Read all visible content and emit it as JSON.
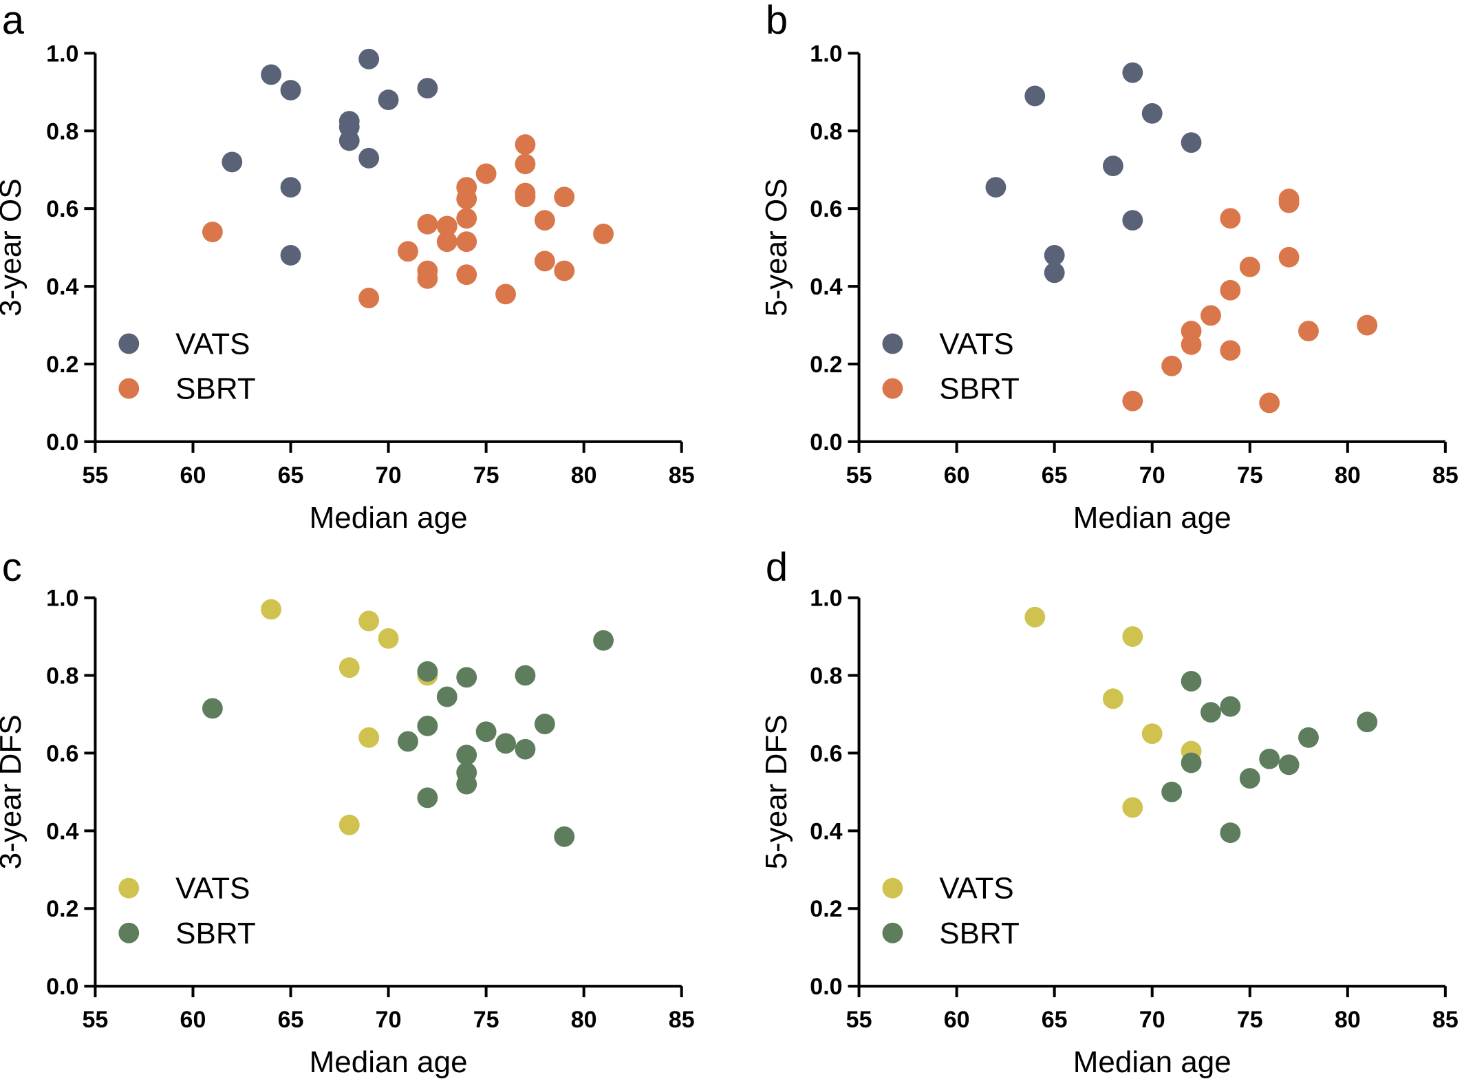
{
  "chart_data": [
    {
      "panel": "a",
      "type": "scatter",
      "xlabel": "Median age",
      "ylabel": "3-year OS",
      "xlim": [
        55,
        85
      ],
      "ylim": [
        0.0,
        1.0
      ],
      "xticks": [
        "55",
        "60",
        "65",
        "70",
        "75",
        "80",
        "85"
      ],
      "yticks": [
        "0.0",
        "0.2",
        "0.4",
        "0.6",
        "0.8",
        "1.0"
      ],
      "legend_position": "bottom-left",
      "series": [
        {
          "name": "VATS",
          "color": "#5a6278",
          "points": [
            [
              62,
              0.72
            ],
            [
              64,
              0.945
            ],
            [
              65,
              0.905
            ],
            [
              65,
              0.655
            ],
            [
              65,
              0.48
            ],
            [
              68,
              0.825
            ],
            [
              68,
              0.81
            ],
            [
              68,
              0.775
            ],
            [
              69,
              0.985
            ],
            [
              69,
              0.73
            ],
            [
              70,
              0.88
            ],
            [
              72,
              0.91
            ]
          ]
        },
        {
          "name": "SBRT",
          "color": "#d9764a",
          "points": [
            [
              61,
              0.54
            ],
            [
              69,
              0.37
            ],
            [
              71,
              0.49
            ],
            [
              72,
              0.56
            ],
            [
              72,
              0.44
            ],
            [
              72,
              0.42
            ],
            [
              73,
              0.555
            ],
            [
              73,
              0.515
            ],
            [
              74,
              0.655
            ],
            [
              74,
              0.625
            ],
            [
              74,
              0.575
            ],
            [
              74,
              0.515
            ],
            [
              74,
              0.43
            ],
            [
              75,
              0.69
            ],
            [
              76,
              0.38
            ],
            [
              77,
              0.765
            ],
            [
              77,
              0.715
            ],
            [
              77,
              0.64
            ],
            [
              77,
              0.63
            ],
            [
              78,
              0.57
            ],
            [
              78,
              0.465
            ],
            [
              79,
              0.63
            ],
            [
              79,
              0.44
            ],
            [
              81,
              0.535
            ]
          ]
        }
      ]
    },
    {
      "panel": "b",
      "type": "scatter",
      "xlabel": "Median age",
      "ylabel": "5-year OS",
      "xlim": [
        55,
        85
      ],
      "ylim": [
        0.0,
        1.0
      ],
      "xticks": [
        "55",
        "60",
        "65",
        "70",
        "75",
        "80",
        "85"
      ],
      "yticks": [
        "0.0",
        "0.2",
        "0.4",
        "0.6",
        "0.8",
        "1.0"
      ],
      "legend_position": "bottom-left",
      "series": [
        {
          "name": "VATS",
          "color": "#5a6278",
          "points": [
            [
              62,
              0.655
            ],
            [
              64,
              0.89
            ],
            [
              65,
              0.48
            ],
            [
              65,
              0.435
            ],
            [
              68,
              0.71
            ],
            [
              69,
              0.95
            ],
            [
              69,
              0.57
            ],
            [
              70,
              0.845
            ],
            [
              72,
              0.77
            ]
          ]
        },
        {
          "name": "SBRT",
          "color": "#d9764a",
          "points": [
            [
              69,
              0.105
            ],
            [
              71,
              0.195
            ],
            [
              72,
              0.285
            ],
            [
              72,
              0.25
            ],
            [
              73,
              0.325
            ],
            [
              74,
              0.575
            ],
            [
              74,
              0.39
            ],
            [
              74,
              0.235
            ],
            [
              75,
              0.45
            ],
            [
              76,
              0.1
            ],
            [
              77,
              0.625
            ],
            [
              77,
              0.615
            ],
            [
              77,
              0.475
            ],
            [
              78,
              0.285
            ],
            [
              81,
              0.3
            ]
          ]
        }
      ]
    },
    {
      "panel": "c",
      "type": "scatter",
      "xlabel": "Median age",
      "ylabel": "3-year DFS",
      "xlim": [
        55,
        85
      ],
      "ylim": [
        0.0,
        1.0
      ],
      "xticks": [
        "55",
        "60",
        "65",
        "70",
        "75",
        "80",
        "85"
      ],
      "yticks": [
        "0.0",
        "0.2",
        "0.4",
        "0.6",
        "0.8",
        "1.0"
      ],
      "legend_position": "bottom-left",
      "series": [
        {
          "name": "VATS",
          "color": "#cfc24f",
          "points": [
            [
              64,
              0.97
            ],
            [
              68,
              0.82
            ],
            [
              68,
              0.415
            ],
            [
              69,
              0.94
            ],
            [
              69,
              0.64
            ],
            [
              70,
              0.895
            ],
            [
              72,
              0.8
            ]
          ]
        },
        {
          "name": "SBRT",
          "color": "#5d7d5c",
          "points": [
            [
              61,
              0.715
            ],
            [
              71,
              0.63
            ],
            [
              72,
              0.81
            ],
            [
              72,
              0.67
            ],
            [
              72,
              0.485
            ],
            [
              73,
              0.745
            ],
            [
              74,
              0.795
            ],
            [
              74,
              0.595
            ],
            [
              74,
              0.55
            ],
            [
              74,
              0.52
            ],
            [
              75,
              0.655
            ],
            [
              76,
              0.625
            ],
            [
              77,
              0.8
            ],
            [
              77,
              0.61
            ],
            [
              78,
              0.675
            ],
            [
              79,
              0.385
            ],
            [
              81,
              0.89
            ]
          ]
        }
      ]
    },
    {
      "panel": "d",
      "type": "scatter",
      "xlabel": "Median age",
      "ylabel": "5-year DFS",
      "xlim": [
        55,
        85
      ],
      "ylim": [
        0.0,
        1.0
      ],
      "xticks": [
        "55",
        "60",
        "65",
        "70",
        "75",
        "80",
        "85"
      ],
      "yticks": [
        "0.0",
        "0.2",
        "0.4",
        "0.6",
        "0.8",
        "1.0"
      ],
      "legend_position": "bottom-left",
      "series": [
        {
          "name": "VATS",
          "color": "#cfc24f",
          "points": [
            [
              64,
              0.95
            ],
            [
              68,
              0.74
            ],
            [
              69,
              0.9
            ],
            [
              69,
              0.46
            ],
            [
              70,
              0.65
            ],
            [
              72,
              0.605
            ]
          ]
        },
        {
          "name": "SBRT",
          "color": "#5d7d5c",
          "points": [
            [
              71,
              0.5
            ],
            [
              72,
              0.785
            ],
            [
              72,
              0.575
            ],
            [
              73,
              0.705
            ],
            [
              74,
              0.72
            ],
            [
              74,
              0.395
            ],
            [
              75,
              0.535
            ],
            [
              76,
              0.585
            ],
            [
              77,
              0.57
            ],
            [
              78,
              0.64
            ],
            [
              81,
              0.68
            ]
          ]
        }
      ]
    }
  ]
}
